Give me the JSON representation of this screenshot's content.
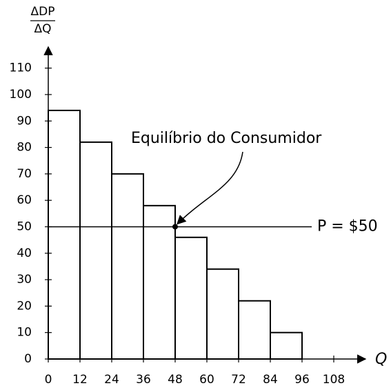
{
  "chart_data": {
    "type": "histogram",
    "y_label_top": "ΔDP",
    "y_label_bottom": "ΔQ",
    "x_label": "Q",
    "bins": [
      0,
      12,
      24,
      36,
      48,
      60,
      72,
      84,
      96
    ],
    "values": [
      94,
      82,
      70,
      58,
      46,
      34,
      22,
      10
    ],
    "color": "#ffffff",
    "xlim": [
      0,
      120
    ],
    "ylim": [
      0,
      118
    ],
    "xticks": [
      0,
      12,
      24,
      36,
      48,
      60,
      72,
      84,
      96,
      108
    ],
    "yticks": [
      0,
      10,
      20,
      30,
      40,
      50,
      60,
      70,
      80,
      90,
      100,
      110
    ],
    "hline": {
      "value": 50,
      "label": "P = $50"
    },
    "annotation": {
      "text": "Equilíbrio do Consumidor",
      "x": 48,
      "y": 50
    }
  }
}
